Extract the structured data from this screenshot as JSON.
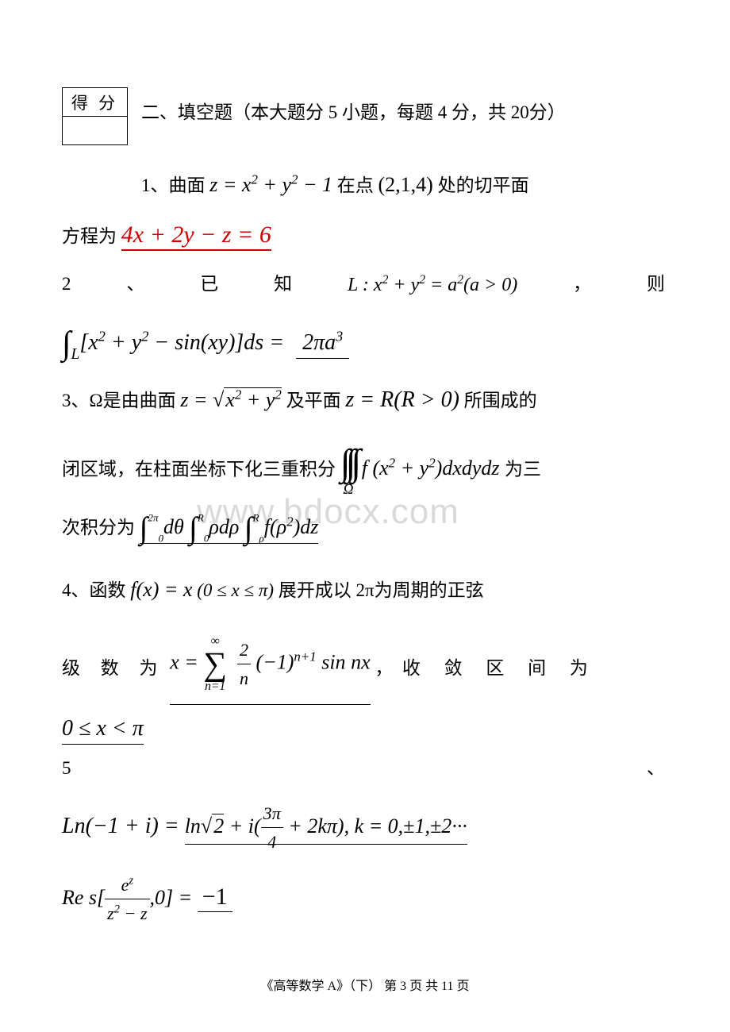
{
  "scoreBox": {
    "label": "得 分"
  },
  "section": {
    "title": "二、填空题（本大题分 5 小题，每题 4 分，共 20分）"
  },
  "q1": {
    "prefix": "1、曲面",
    "surface": "z = x² + y² − 1",
    "at": "在点",
    "point": "(2,1,4)",
    "suffix": "处的切平面",
    "line2prefix": "方程为",
    "answer": "4x + 2y − z = 6"
  },
  "q2": {
    "n1": "2",
    "n2": "、",
    "n3": "已",
    "n4": "知",
    "formula": "L : x² + y² = a²(a > 0)",
    "comma": "，",
    "n5": "则",
    "integral_pre": "∫",
    "integral_sub": "L",
    "integral_body": "[x² + y² − sin(xy)]ds =",
    "answer": "2πa³"
  },
  "q3": {
    "prefix": "3、Ω是由曲面",
    "surf1a": "z = ",
    "surf1b": "x² + y²",
    "mid": " 及平面 ",
    "surf2": "z = R(R > 0)",
    "suffix": " 所围成的",
    "line2a": "闭区域，在柱面坐标下化三重积分",
    "tint_body": "f (x² + y²)dxdydz",
    "tint_sub": "Ω",
    "line2b": " 为三",
    "line3a": "次积分为",
    "ans_i1_up": "2π",
    "ans_i1_low": "0",
    "ans_i1_body": "dθ",
    "ans_i2_up": "R",
    "ans_i2_low": "0",
    "ans_i2_body": "ρdρ",
    "ans_i3_up": "R",
    "ans_i3_low": "ρ",
    "ans_i3_body": "f(ρ²)dz"
  },
  "q4": {
    "prefix": "4、函数 ",
    "fx": "f(x) = x",
    "domain": " (0 ≤ x ≤ π)",
    "suffix": "展开成以 2π为周期的正弦",
    "line2_words": "级 数 为",
    "series_lhs": "x = ",
    "sum_top": "∞",
    "sum_bot": "n=1",
    "frac_num": "2",
    "frac_den": "n",
    "series_rhs": "(−1)ⁿ⁺¹ sin nx",
    "comma": "，",
    "conv_words": "收 敛 区 间 为",
    "interval": "0 ≤ x < π"
  },
  "q5": {
    "label": "5",
    "dun": "、",
    "lhs": "Ln(−1 + i) = ",
    "ans1_a": "ln",
    "ans1_sqrt": "2",
    "ans1_b": " + i(",
    "ans1_frac_num": "3π",
    "ans1_frac_den": "4",
    "ans1_c": " + 2kπ), k = 0,±1,±2···",
    "res_a": "Re s[",
    "res_frac_num": "eᶻ",
    "res_frac_den": "z² − z",
    "res_b": ",0] = ",
    "ans2": "−1"
  },
  "watermark": "www.bdocx.com",
  "footer": {
    "text": "《高等数学 A》（下）  第 3 页 共 11 页"
  }
}
